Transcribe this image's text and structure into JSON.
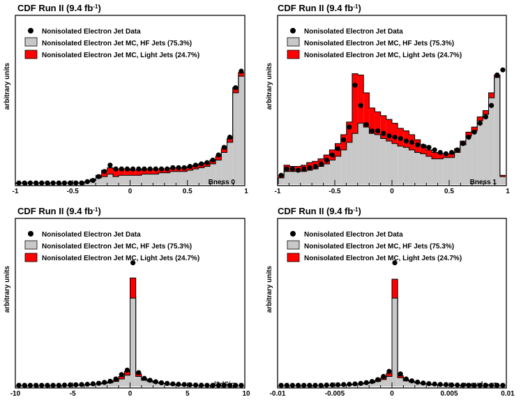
{
  "chart_data": [
    {
      "type": "area",
      "title": "CDF Run II (9.4 fb",
      "title_sup": "-1",
      "title_end": ")",
      "ylabel": "arbitrary units",
      "xlabel": "Bness 0",
      "xlim": [
        -1,
        1
      ],
      "xticks": [
        "-1",
        "-0.5",
        "0",
        "0.5",
        "1"
      ],
      "xtick_values": [
        -1,
        -0.5,
        0,
        0.5,
        1
      ],
      "legend": [
        "Nonisolated Electron Jet Data",
        "Nonisolated Electron Jet MC, HF Jets (75.3%)",
        "Nonisolated Electron Jet MC, Light Jets (24.7%)"
      ],
      "ymax": 1.0,
      "nbins": 40,
      "hf": [
        0.01,
        0.01,
        0.01,
        0.01,
        0.01,
        0.01,
        0.01,
        0.01,
        0.01,
        0.01,
        0.01,
        0.01,
        0.02,
        0.03,
        0.05,
        0.06,
        0.08,
        0.06,
        0.07,
        0.07,
        0.07,
        0.07,
        0.08,
        0.08,
        0.08,
        0.09,
        0.09,
        0.1,
        0.1,
        0.1,
        0.11,
        0.12,
        0.13,
        0.14,
        0.16,
        0.19,
        0.25,
        0.33,
        0.72,
        0.85
      ],
      "light": [
        0.0,
        0.0,
        0.0,
        0.0,
        0.0,
        0.0,
        0.0,
        0.0,
        0.0,
        0.0,
        0.0,
        0.0,
        0.0,
        0.01,
        0.02,
        0.05,
        0.05,
        0.06,
        0.05,
        0.05,
        0.04,
        0.04,
        0.04,
        0.04,
        0.04,
        0.03,
        0.03,
        0.03,
        0.03,
        0.03,
        0.03,
        0.03,
        0.03,
        0.03,
        0.03,
        0.03,
        0.03,
        0.03,
        0.04,
        0.03
      ],
      "data": [
        0.01,
        0.01,
        0.01,
        0.01,
        0.01,
        0.01,
        0.01,
        0.01,
        0.01,
        0.01,
        0.01,
        0.01,
        0.02,
        0.03,
        0.06,
        0.1,
        0.15,
        0.12,
        0.12,
        0.12,
        0.12,
        0.12,
        0.12,
        0.12,
        0.12,
        0.12,
        0.12,
        0.13,
        0.13,
        0.13,
        0.14,
        0.15,
        0.16,
        0.17,
        0.19,
        0.23,
        0.29,
        0.37,
        0.76,
        0.89
      ]
    },
    {
      "type": "area",
      "title": "CDF Run II (9.4 fb",
      "title_sup": "-1",
      "title_end": ")",
      "ylabel": "arbitrary units",
      "xlabel": "Bness 1",
      "xlim": [
        -1,
        1
      ],
      "xticks": [
        "-1",
        "-0.5",
        "0",
        "0.5",
        "1"
      ],
      "xtick_values": [
        -1,
        -0.5,
        0,
        0.5,
        1
      ],
      "legend": [
        "Nonisolated Electron Jet Data",
        "Nonisolated Electron Jet MC, HF Jets (75.3%)",
        "Nonisolated Electron Jet MC, Light Jets (24.7%)"
      ],
      "ymax": 1.0,
      "nbins": 40,
      "hf": [
        0.05,
        0.1,
        0.1,
        0.1,
        0.1,
        0.11,
        0.12,
        0.14,
        0.16,
        0.19,
        0.22,
        0.27,
        0.33,
        0.4,
        0.48,
        0.45,
        0.4,
        0.39,
        0.36,
        0.34,
        0.32,
        0.3,
        0.29,
        0.27,
        0.25,
        0.24,
        0.22,
        0.2,
        0.2,
        0.21,
        0.21,
        0.25,
        0.31,
        0.38,
        0.42,
        0.5,
        0.55,
        0.68,
        0.84,
        0.06
      ],
      "light": [
        0.02,
        0.05,
        0.04,
        0.04,
        0.05,
        0.06,
        0.06,
        0.06,
        0.07,
        0.08,
        0.1,
        0.12,
        0.16,
        0.47,
        0.38,
        0.27,
        0.2,
        0.18,
        0.18,
        0.17,
        0.16,
        0.14,
        0.13,
        0.12,
        0.1,
        0.07,
        0.05,
        0.05,
        0.04,
        0.03,
        0.03,
        0.03,
        0.03,
        0.03,
        0.03,
        0.03,
        0.03,
        0.04,
        0.02,
        0.01
      ],
      "data": [
        0.07,
        0.12,
        0.12,
        0.11,
        0.12,
        0.13,
        0.14,
        0.16,
        0.19,
        0.23,
        0.28,
        0.35,
        0.45,
        0.78,
        0.62,
        0.47,
        0.42,
        0.42,
        0.4,
        0.38,
        0.37,
        0.36,
        0.34,
        0.33,
        0.31,
        0.3,
        0.29,
        0.27,
        0.25,
        0.24,
        0.25,
        0.27,
        0.32,
        0.37,
        0.41,
        0.48,
        0.53,
        0.62,
        0.86,
        0.9
      ]
    },
    {
      "type": "area",
      "title": "CDF Run II (9.4 fb",
      "title_sup": "-1",
      "title_end": ")",
      "ylabel": "arbitrary units",
      "xlabel": "l3dSig",
      "xlim": [
        -10,
        10
      ],
      "xticks": [
        "-10",
        "-5",
        "0",
        "5",
        "10"
      ],
      "xtick_values": [
        -10,
        -5,
        0,
        5,
        10
      ],
      "legend": [
        "Nonisolated Electron Jet Data",
        "Nonisolated Electron Jet MC, HF Jets (75.3%)",
        "Nonisolated Electron Jet MC, Light Jets (24.7%)"
      ],
      "ymax": 1.0,
      "nbins": 40,
      "hf": [
        0.005,
        0.005,
        0.005,
        0.005,
        0.005,
        0.005,
        0.005,
        0.006,
        0.007,
        0.008,
        0.01,
        0.012,
        0.014,
        0.017,
        0.02,
        0.025,
        0.03,
        0.04,
        0.06,
        0.09,
        0.7,
        0.08,
        0.05,
        0.04,
        0.03,
        0.025,
        0.02,
        0.017,
        0.014,
        0.012,
        0.01,
        0.009,
        0.008,
        0.007,
        0.006,
        0.006,
        0.005,
        0.005,
        0.005,
        0.005
      ],
      "light": [
        0.0,
        0.0,
        0.0,
        0.0,
        0.0,
        0.0,
        0.0,
        0.0,
        0.0,
        0.0,
        0.0,
        0.0,
        0.0,
        0.0,
        0.002,
        0.004,
        0.006,
        0.01,
        0.02,
        0.03,
        0.16,
        0.02,
        0.01,
        0.006,
        0.004,
        0.002,
        0.0,
        0.0,
        0.0,
        0.0,
        0.0,
        0.0,
        0.0,
        0.0,
        0.0,
        0.0,
        0.0,
        0.0,
        0.0,
        0.0
      ],
      "data": [
        0.01,
        0.01,
        0.01,
        0.01,
        0.01,
        0.01,
        0.01,
        0.01,
        0.012,
        0.013,
        0.014,
        0.016,
        0.018,
        0.022,
        0.026,
        0.033,
        0.042,
        0.06,
        0.095,
        0.13,
        0.98,
        0.11,
        0.065,
        0.05,
        0.038,
        0.03,
        0.025,
        0.021,
        0.018,
        0.016,
        0.014,
        0.012,
        0.011,
        0.01,
        0.01,
        0.01,
        0.01,
        0.01,
        0.01,
        0.01
      ]
    },
    {
      "type": "area",
      "title": "CDF Run II (9.4 fb",
      "title_sup": "-1",
      "title_end": ")",
      "ylabel": "arbitrary units",
      "xlabel": "pseudo-cτ",
      "xlim": [
        -0.01,
        0.01
      ],
      "xticks": [
        "-0.01",
        "-0.005",
        "0",
        "0.005",
        "0.01"
      ],
      "xtick_values": [
        -0.01,
        -0.005,
        0,
        0.005,
        0.01
      ],
      "legend": [
        "Nonisolated Electron Jet Data",
        "Nonisolated Electron Jet MC, HF Jets (75.3%)",
        "Nonisolated Electron Jet MC, Light Jets (24.7%)"
      ],
      "ymax": 1.0,
      "nbins": 40,
      "hf": [
        0.005,
        0.005,
        0.005,
        0.005,
        0.005,
        0.005,
        0.005,
        0.006,
        0.007,
        0.008,
        0.01,
        0.012,
        0.014,
        0.017,
        0.02,
        0.025,
        0.03,
        0.04,
        0.055,
        0.08,
        0.7,
        0.07,
        0.045,
        0.035,
        0.028,
        0.022,
        0.018,
        0.015,
        0.013,
        0.011,
        0.01,
        0.009,
        0.008,
        0.007,
        0.006,
        0.006,
        0.005,
        0.005,
        0.005,
        0.005
      ],
      "light": [
        0.0,
        0.0,
        0.0,
        0.0,
        0.0,
        0.0,
        0.0,
        0.0,
        0.0,
        0.0,
        0.0,
        0.0,
        0.0,
        0.0,
        0.002,
        0.004,
        0.006,
        0.01,
        0.015,
        0.025,
        0.15,
        0.015,
        0.008,
        0.005,
        0.003,
        0.002,
        0.0,
        0.0,
        0.0,
        0.0,
        0.0,
        0.0,
        0.0,
        0.0,
        0.0,
        0.0,
        0.0,
        0.0,
        0.0,
        0.0
      ],
      "data": [
        0.01,
        0.01,
        0.01,
        0.01,
        0.01,
        0.01,
        0.01,
        0.01,
        0.012,
        0.013,
        0.014,
        0.016,
        0.018,
        0.021,
        0.025,
        0.031,
        0.04,
        0.055,
        0.08,
        0.12,
        0.98,
        0.1,
        0.06,
        0.045,
        0.035,
        0.028,
        0.023,
        0.02,
        0.017,
        0.015,
        0.013,
        0.012,
        0.011,
        0.01,
        0.01,
        0.01,
        0.01,
        0.01,
        0.01,
        0.01
      ]
    }
  ],
  "colors": {
    "hf_fill": "#c8c8c8",
    "light_fill": "#ff0000",
    "data_marker": "#000000",
    "axis": "#000000"
  }
}
